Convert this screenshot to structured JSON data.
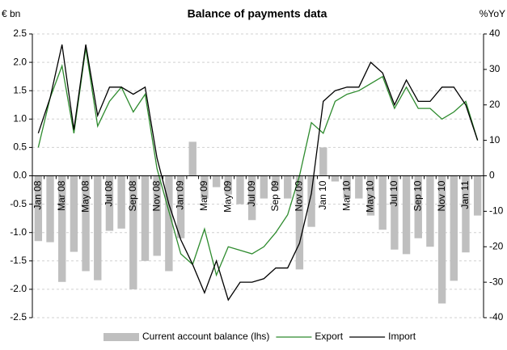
{
  "chart_data": {
    "type": "bar_line",
    "title": "Balance of payments data",
    "y_label": "€ bn",
    "y2_label": "%YoY",
    "categories": [
      "Jan 08",
      null,
      "Mar 08",
      null,
      "May 08",
      null,
      "Jul 08",
      null,
      "Sep 08",
      null,
      "Nov 08",
      null,
      "Jan 09",
      null,
      "Mar 09",
      null,
      "May 09",
      null,
      "Jul 09",
      null,
      "Sep 09",
      null,
      "Nov 09",
      null,
      "Jan 10",
      null,
      "Mar 10",
      null,
      "May 10",
      null,
      "Jul 10",
      null,
      "Sep 10",
      null,
      "Nov 10",
      null,
      "Jan 11",
      null
    ],
    "series": [
      {
        "name": "Current account balance (lhs)",
        "type": "bar",
        "color": "#bfbfbf",
        "values": [
          -1.15,
          -1.17,
          -1.87,
          -1.34,
          -1.68,
          -1.84,
          -0.97,
          -0.93,
          -2.0,
          -1.5,
          -1.41,
          -1.68,
          -1.1,
          0.6,
          -0.4,
          -0.2,
          -0.33,
          -0.5,
          -0.78,
          -0.4,
          -0.26,
          -0.4,
          -1.65,
          -0.9,
          0.5,
          -0.1,
          -0.4,
          -0.4,
          -0.7,
          -0.95,
          -1.3,
          -1.38,
          -1.1,
          -1.25,
          -2.25,
          -1.85,
          -1.35,
          -0.7
        ]
      },
      {
        "name": "Export",
        "type": "line",
        "axis": "y2",
        "color": "#2e8b2e",
        "values": [
          8,
          22,
          31,
          12,
          36,
          14,
          21,
          25,
          18,
          23,
          2,
          -10,
          -22,
          -25,
          -15,
          -28,
          -20,
          -21,
          -22,
          -20,
          -16,
          -11,
          0,
          15,
          12,
          21,
          23,
          24,
          26,
          28,
          19,
          25,
          19,
          19,
          16,
          18,
          21,
          10
        ]
      },
      {
        "name": "Import",
        "type": "line",
        "axis": "y2",
        "color": "#000000",
        "values": [
          12,
          22,
          37,
          13,
          37,
          17,
          25,
          25,
          23,
          25,
          5,
          -8,
          -18,
          -25,
          -33,
          -24,
          -35,
          -30,
          -30,
          -29,
          -26,
          -26,
          -19,
          -5,
          21,
          24,
          25,
          25,
          32,
          29,
          20,
          27,
          21,
          21,
          25,
          25,
          20,
          10
        ]
      }
    ],
    "ylim": [
      -2.5,
      2.5
    ],
    "yticks": [
      2.5,
      {
        "value": 2.0,
        "label": "2.0"
      },
      1.5,
      {
        "value": 1.0,
        "label": "1.0"
      },
      0.5,
      {
        "value": 0,
        "label": "0.0"
      },
      -0.5,
      {
        "value": -1.0,
        "label": "-1.0"
      },
      -1.5,
      {
        "value": -2.0,
        "label": "-2.0"
      },
      -2.5
    ],
    "y2lim": [
      -40,
      40
    ],
    "y2ticks": [
      40,
      30,
      20,
      10,
      0,
      -10,
      -20,
      -30,
      -40
    ],
    "grid": true,
    "legend": "bottom"
  }
}
